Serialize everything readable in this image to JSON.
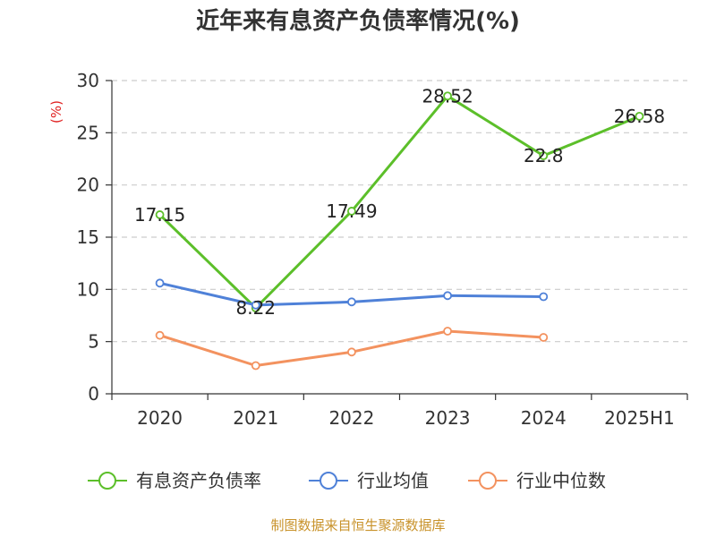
{
  "chart_data": {
    "type": "line",
    "title": "近年来有息资产负债率情况(%)",
    "ylabel": "(%)",
    "xlabel": "",
    "categories": [
      "2020",
      "2021",
      "2022",
      "2023",
      "2024",
      "2025H1"
    ],
    "ylim": [
      0,
      30
    ],
    "yticks": [
      "0",
      "5",
      "10",
      "15",
      "20",
      "25",
      "30"
    ],
    "grid": true,
    "legend_position": "bottom",
    "series": [
      {
        "name": "有息资产负债率",
        "color": "#5cbf2a",
        "values": [
          17.15,
          8.22,
          17.49,
          28.52,
          22.8,
          26.58
        ],
        "labels": [
          "17.15",
          "8.22",
          "17.49",
          "28.52",
          "22.8",
          "26.58"
        ]
      },
      {
        "name": "行业均值",
        "color": "#4f81d8",
        "values": [
          10.6,
          8.5,
          8.8,
          9.4,
          9.3,
          null
        ]
      },
      {
        "name": "行业中位数",
        "color": "#f3925f",
        "values": [
          5.6,
          2.7,
          4.0,
          6.0,
          5.4,
          null
        ]
      }
    ],
    "source": "制图数据来自恒生聚源数据库"
  }
}
